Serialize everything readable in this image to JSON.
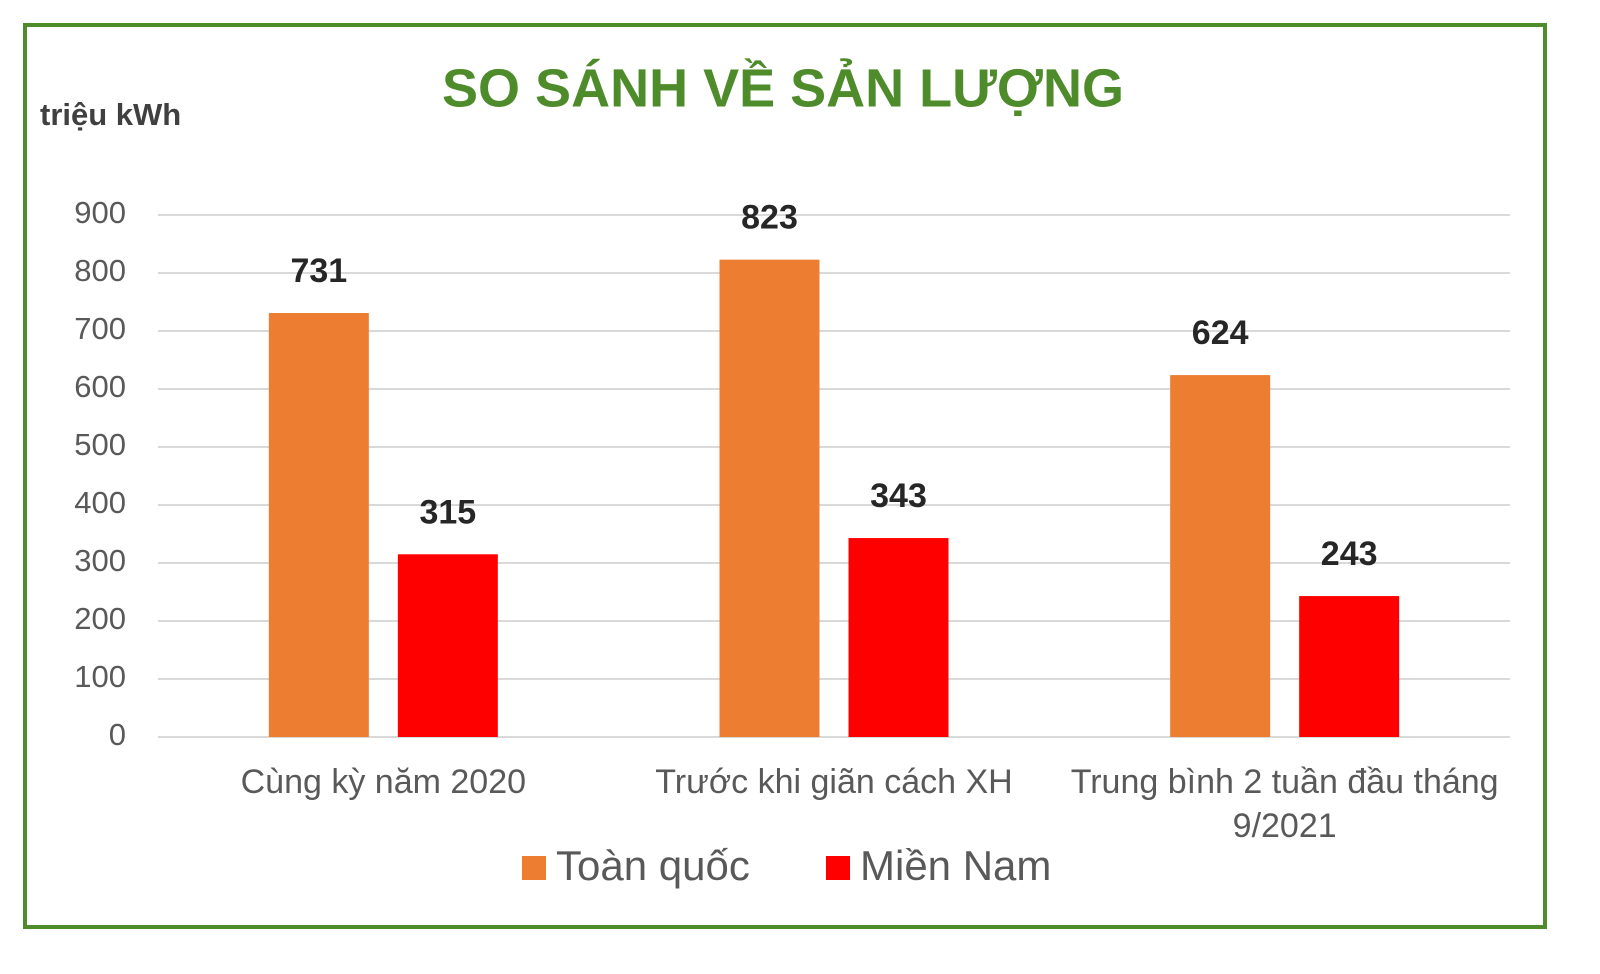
{
  "chart_data": {
    "type": "bar",
    "title": "SO SÁNH VỀ SẢN LƯỢNG",
    "y_label": "triệu kWh",
    "categories": [
      "Cùng kỳ năm 2020",
      "Trước  khi giãn cách XH",
      "Trung bình 2 tuần đầu tháng 9/2021"
    ],
    "series": [
      {
        "name": "Toàn quốc",
        "color": "#ed7d31",
        "values": [
          731,
          823,
          624
        ]
      },
      {
        "name": "Miền  Nam",
        "color": "#ff0000",
        "values": [
          315,
          343,
          243
        ]
      }
    ],
    "ylim": [
      0,
      900
    ],
    "yticks": [
      0,
      100,
      200,
      300,
      400,
      500,
      600,
      700,
      800,
      900
    ],
    "grid": true
  }
}
